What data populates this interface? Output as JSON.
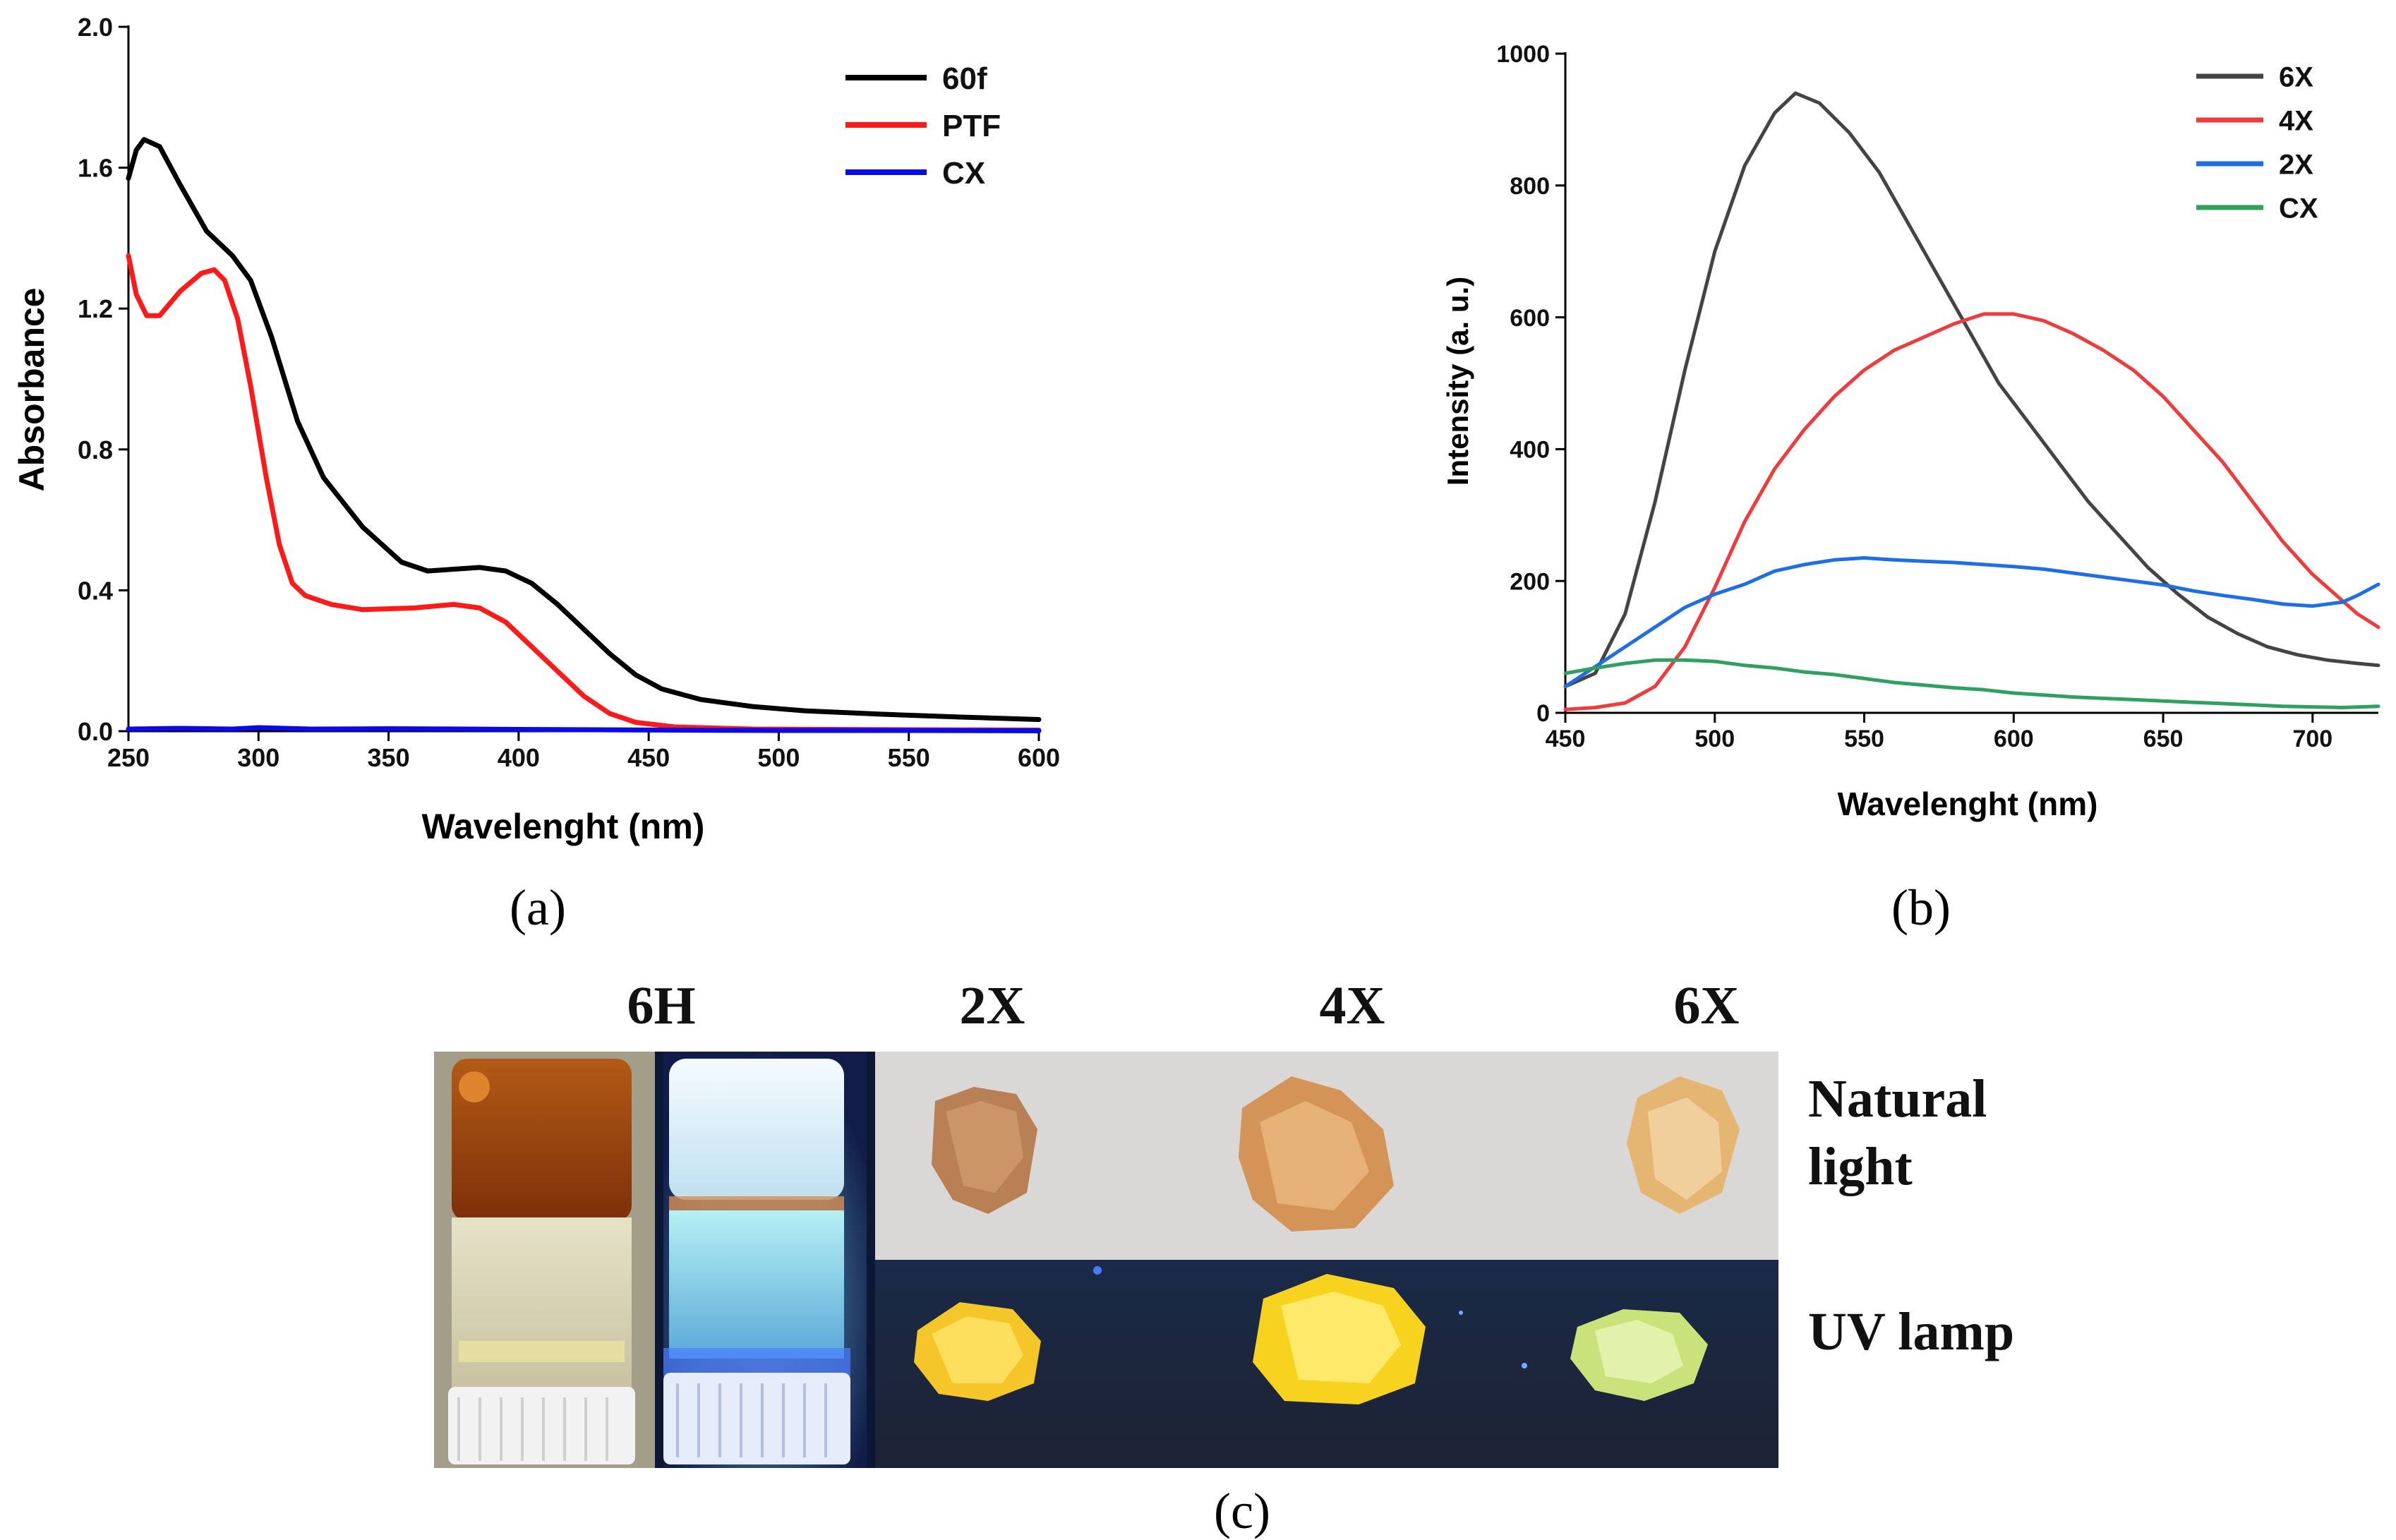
{
  "colors": {
    "black": "#000000",
    "red": "#ff1a1a",
    "blue": "#0a0ae6",
    "gray": "#444444",
    "red_b": "#ef3b3b",
    "blue_b": "#1e6ee6",
    "green_b": "#2fa060"
  },
  "panels": {
    "a_label": "(a)",
    "b_label": "(b)",
    "c_label": "(c)"
  },
  "chart_data": [
    {
      "type": "line",
      "xlabel": "Wavelenght (nm)",
      "ylabel": "Absorbance",
      "xlim": [
        250,
        600
      ],
      "ylim": [
        0,
        2.0
      ],
      "xticks": [
        "250",
        "300",
        "350",
        "400",
        "450",
        "500",
        "550",
        "600"
      ],
      "yticks": [
        "0.0",
        "0.4",
        "0.8",
        "1.2",
        "1.6",
        "2.0"
      ],
      "legend_position": "top-right",
      "series": [
        {
          "name": "60f",
          "color": "#000000",
          "points": [
            [
              250,
              1.57
            ],
            [
              253,
              1.65
            ],
            [
              256,
              1.68
            ],
            [
              262,
              1.66
            ],
            [
              270,
              1.55
            ],
            [
              280,
              1.42
            ],
            [
              290,
              1.35
            ],
            [
              297,
              1.28
            ],
            [
              305,
              1.12
            ],
            [
              315,
              0.88
            ],
            [
              325,
              0.72
            ],
            [
              340,
              0.58
            ],
            [
              355,
              0.48
            ],
            [
              365,
              0.455
            ],
            [
              375,
              0.46
            ],
            [
              385,
              0.465
            ],
            [
              395,
              0.455
            ],
            [
              405,
              0.42
            ],
            [
              415,
              0.36
            ],
            [
              425,
              0.29
            ],
            [
              435,
              0.22
            ],
            [
              445,
              0.16
            ],
            [
              455,
              0.12
            ],
            [
              470,
              0.09
            ],
            [
              490,
              0.07
            ],
            [
              510,
              0.058
            ],
            [
              540,
              0.048
            ],
            [
              570,
              0.04
            ],
            [
              600,
              0.033
            ]
          ]
        },
        {
          "name": "PTF",
          "color": "#ff1a1a",
          "points": [
            [
              250,
              1.35
            ],
            [
              253,
              1.24
            ],
            [
              257,
              1.18
            ],
            [
              262,
              1.18
            ],
            [
              270,
              1.25
            ],
            [
              278,
              1.3
            ],
            [
              283,
              1.31
            ],
            [
              287,
              1.28
            ],
            [
              292,
              1.17
            ],
            [
              297,
              0.98
            ],
            [
              303,
              0.72
            ],
            [
              308,
              0.53
            ],
            [
              313,
              0.42
            ],
            [
              318,
              0.385
            ],
            [
              328,
              0.36
            ],
            [
              340,
              0.345
            ],
            [
              360,
              0.35
            ],
            [
              375,
              0.36
            ],
            [
              385,
              0.35
            ],
            [
              395,
              0.31
            ],
            [
              405,
              0.24
            ],
            [
              415,
              0.17
            ],
            [
              425,
              0.1
            ],
            [
              435,
              0.05
            ],
            [
              445,
              0.025
            ],
            [
              460,
              0.012
            ],
            [
              490,
              0.006
            ],
            [
              550,
              0.004
            ],
            [
              600,
              0.003
            ]
          ]
        },
        {
          "name": "CX",
          "color": "#0a0ae6",
          "points": [
            [
              250,
              0.006
            ],
            [
              270,
              0.008
            ],
            [
              290,
              0.006
            ],
            [
              300,
              0.01
            ],
            [
              320,
              0.006
            ],
            [
              350,
              0.007
            ],
            [
              380,
              0.006
            ],
            [
              400,
              0.005
            ],
            [
              430,
              0.004
            ],
            [
              460,
              0.003
            ],
            [
              500,
              0.002
            ],
            [
              550,
              0.002
            ],
            [
              600,
              0.001
            ]
          ]
        }
      ]
    },
    {
      "type": "line",
      "xlabel": "Wavelenght (nm)",
      "ylabel": "Intensity (a. u.)",
      "xlim": [
        450,
        722
      ],
      "ylim": [
        0,
        1000
      ],
      "xticks": [
        "450",
        "500",
        "550",
        "600",
        "650",
        "700"
      ],
      "yticks": [
        "0",
        "200",
        "400",
        "600",
        "800",
        "1000"
      ],
      "legend_position": "top-right",
      "series": [
        {
          "name": "6X",
          "color": "#444444",
          "points": [
            [
              450,
              40
            ],
            [
              460,
              60
            ],
            [
              470,
              150
            ],
            [
              480,
              320
            ],
            [
              490,
              520
            ],
            [
              500,
              700
            ],
            [
              510,
              830
            ],
            [
              520,
              910
            ],
            [
              527,
              940
            ],
            [
              535,
              925
            ],
            [
              545,
              880
            ],
            [
              555,
              820
            ],
            [
              565,
              740
            ],
            [
              575,
              660
            ],
            [
              585,
              580
            ],
            [
              595,
              500
            ],
            [
              605,
              440
            ],
            [
              615,
              380
            ],
            [
              625,
              320
            ],
            [
              635,
              270
            ],
            [
              645,
              220
            ],
            [
              655,
              180
            ],
            [
              665,
              145
            ],
            [
              675,
              120
            ],
            [
              685,
              100
            ],
            [
              695,
              88
            ],
            [
              705,
              80
            ],
            [
              715,
              75
            ],
            [
              722,
              72
            ]
          ]
        },
        {
          "name": "4X",
          "color": "#ef3b3b",
          "points": [
            [
              450,
              5
            ],
            [
              460,
              8
            ],
            [
              470,
              15
            ],
            [
              480,
              40
            ],
            [
              490,
              100
            ],
            [
              500,
              190
            ],
            [
              510,
              290
            ],
            [
              520,
              370
            ],
            [
              530,
              430
            ],
            [
              540,
              480
            ],
            [
              550,
              520
            ],
            [
              560,
              550
            ],
            [
              570,
              570
            ],
            [
              580,
              590
            ],
            [
              590,
              605
            ],
            [
              600,
              605
            ],
            [
              610,
              595
            ],
            [
              620,
              575
            ],
            [
              630,
              550
            ],
            [
              640,
              520
            ],
            [
              650,
              480
            ],
            [
              660,
              430
            ],
            [
              670,
              380
            ],
            [
              680,
              320
            ],
            [
              690,
              260
            ],
            [
              700,
              210
            ],
            [
              710,
              170
            ],
            [
              715,
              150
            ],
            [
              722,
              130
            ]
          ]
        },
        {
          "name": "2X",
          "color": "#1e6ee6",
          "points": [
            [
              450,
              40
            ],
            [
              460,
              70
            ],
            [
              470,
              100
            ],
            [
              480,
              130
            ],
            [
              490,
              160
            ],
            [
              500,
              180
            ],
            [
              510,
              195
            ],
            [
              520,
              215
            ],
            [
              530,
              225
            ],
            [
              540,
              232
            ],
            [
              550,
              235
            ],
            [
              560,
              232
            ],
            [
              570,
              230
            ],
            [
              580,
              228
            ],
            [
              590,
              225
            ],
            [
              600,
              222
            ],
            [
              610,
              218
            ],
            [
              620,
              212
            ],
            [
              630,
              206
            ],
            [
              640,
              200
            ],
            [
              650,
              194
            ],
            [
              660,
              185
            ],
            [
              670,
              178
            ],
            [
              680,
              172
            ],
            [
              690,
              165
            ],
            [
              700,
              162
            ],
            [
              710,
              168
            ],
            [
              715,
              178
            ],
            [
              722,
              195
            ]
          ]
        },
        {
          "name": "CX",
          "color": "#2fa060",
          "points": [
            [
              450,
              60
            ],
            [
              460,
              68
            ],
            [
              470,
              75
            ],
            [
              480,
              80
            ],
            [
              490,
              80
            ],
            [
              500,
              78
            ],
            [
              510,
              72
            ],
            [
              520,
              68
            ],
            [
              530,
              62
            ],
            [
              540,
              58
            ],
            [
              550,
              52
            ],
            [
              560,
              46
            ],
            [
              570,
              42
            ],
            [
              580,
              38
            ],
            [
              590,
              35
            ],
            [
              600,
              30
            ],
            [
              610,
              27
            ],
            [
              620,
              24
            ],
            [
              630,
              22
            ],
            [
              640,
              20
            ],
            [
              650,
              18
            ],
            [
              660,
              16
            ],
            [
              670,
              14
            ],
            [
              680,
              12
            ],
            [
              690,
              10
            ],
            [
              700,
              9
            ],
            [
              710,
              8
            ],
            [
              722,
              10
            ]
          ]
        }
      ]
    }
  ],
  "photo": {
    "col_labels": [
      "6H",
      "2X",
      "4X",
      "6X"
    ],
    "row_labels": [
      "Natural",
      "light",
      "UV lamp"
    ]
  }
}
